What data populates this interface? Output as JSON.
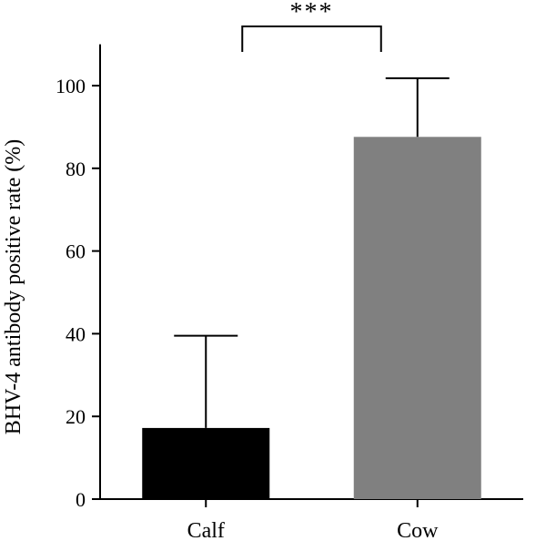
{
  "chart_data": {
    "type": "bar",
    "categories": [
      "Calf",
      "Cow"
    ],
    "values": [
      17.2,
      87.6
    ],
    "error_upper": [
      39.5,
      101.8
    ],
    "colors": [
      "#000000",
      "#808080"
    ],
    "ylabel": "BHV-4 antibody positive rate (%)",
    "xlabel": "",
    "title": "",
    "ylim": [
      0,
      110
    ],
    "yticks": [
      0,
      20,
      40,
      60,
      80,
      100
    ],
    "significance": {
      "between": [
        "Calf",
        "Cow"
      ],
      "label": "***"
    },
    "grid": false,
    "legend": "none"
  }
}
